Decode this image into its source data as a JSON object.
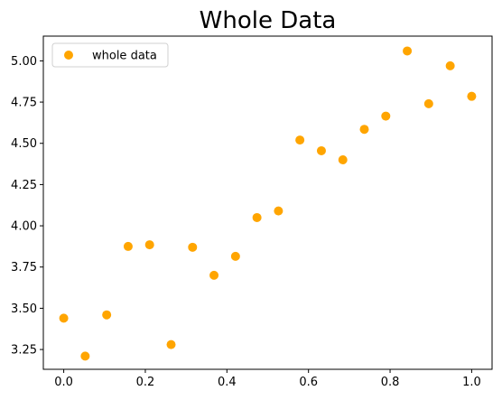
{
  "chart_data": {
    "type": "scatter",
    "title": "Whole Data",
    "xlabel": "",
    "ylabel": "",
    "xlim": [
      -0.05,
      1.05
    ],
    "ylim": [
      3.13,
      5.15
    ],
    "xticks": [
      0.0,
      0.2,
      0.4,
      0.6,
      0.8,
      1.0
    ],
    "xtick_labels": [
      "0.0",
      "0.2",
      "0.4",
      "0.6",
      "0.8",
      "1.0"
    ],
    "yticks": [
      3.25,
      3.5,
      3.75,
      4.0,
      4.25,
      4.5,
      4.75,
      5.0
    ],
    "ytick_labels": [
      "3.25",
      "3.50",
      "3.75",
      "4.00",
      "4.25",
      "4.50",
      "4.75",
      "5.00"
    ],
    "grid": false,
    "legend_position": "top-left",
    "series": [
      {
        "name": "whole data",
        "color": "#FFA500",
        "x": [
          0.0,
          0.0526,
          0.1053,
          0.1579,
          0.2105,
          0.2632,
          0.3158,
          0.3684,
          0.4211,
          0.4737,
          0.5263,
          0.5789,
          0.6316,
          0.6842,
          0.7368,
          0.7895,
          0.8421,
          0.8947,
          0.9474,
          1.0
        ],
        "y": [
          3.44,
          3.21,
          3.46,
          3.875,
          3.885,
          3.28,
          3.87,
          3.7,
          3.815,
          4.05,
          4.09,
          4.52,
          4.455,
          4.4,
          4.585,
          4.665,
          5.06,
          4.74,
          4.97,
          4.785
        ]
      }
    ]
  }
}
